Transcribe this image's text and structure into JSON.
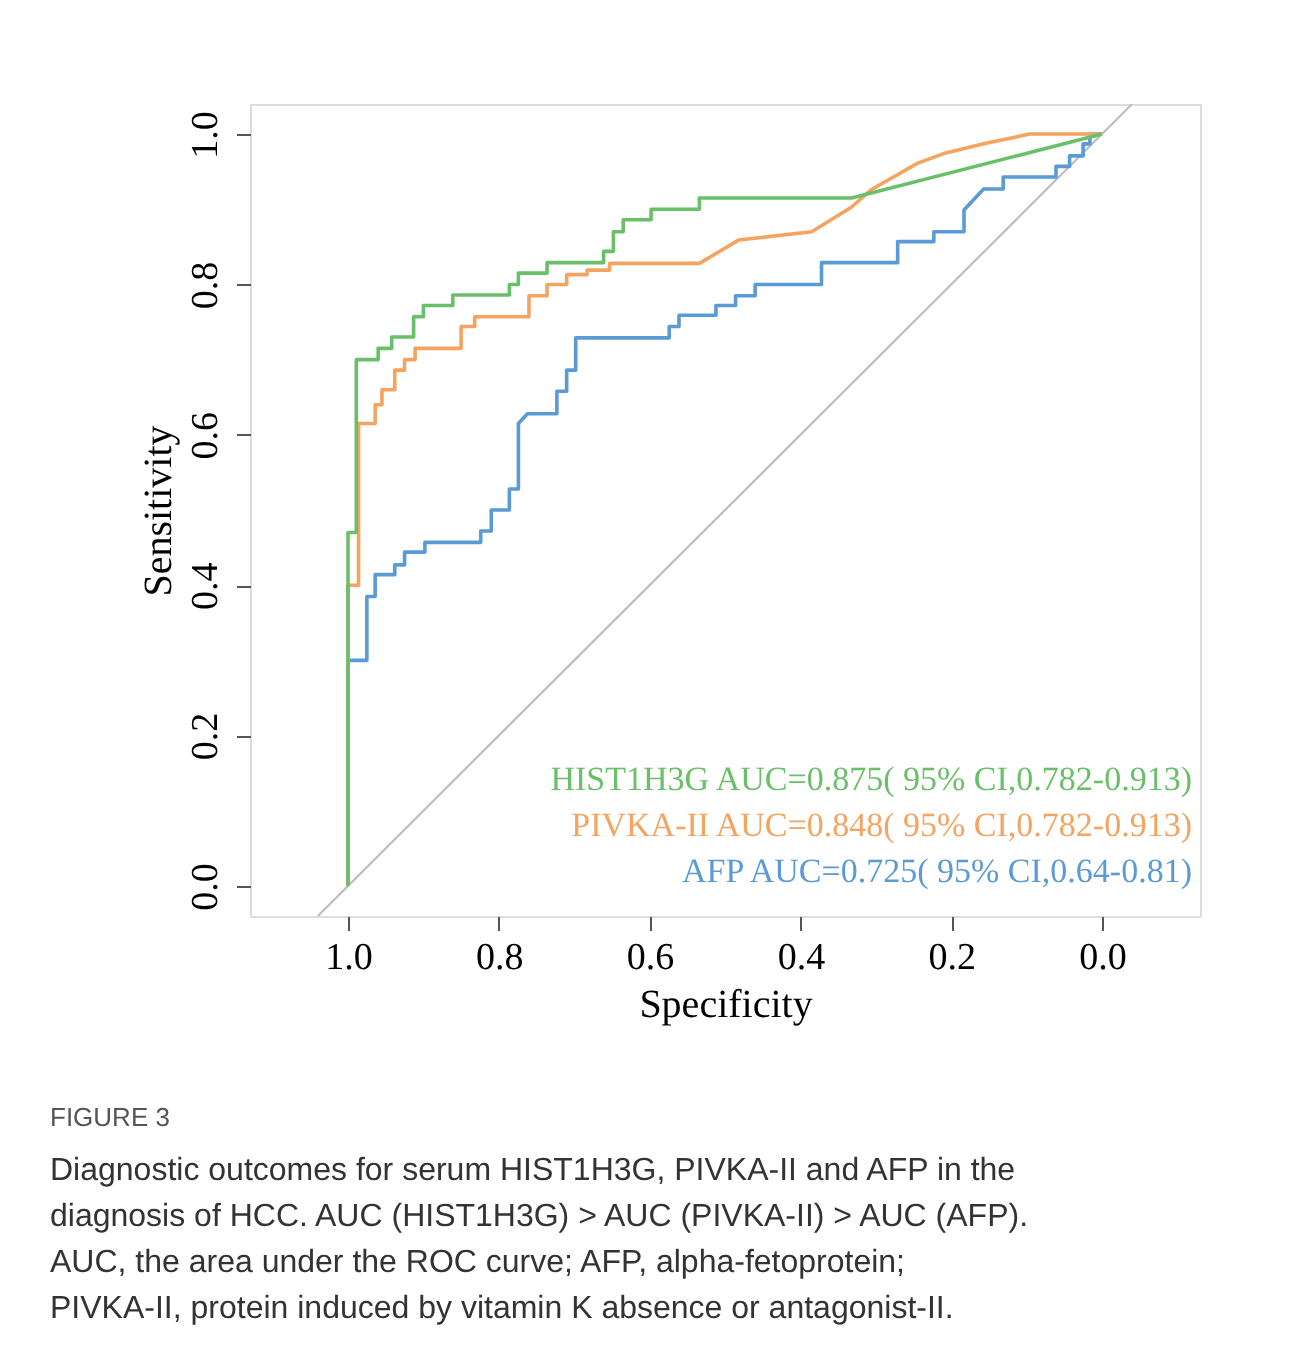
{
  "chart_data": {
    "type": "line",
    "xlabel": "Specificity",
    "ylabel": "Sensitivity",
    "xlim": [
      1.13,
      -0.13
    ],
    "ylim": [
      -0.04,
      1.04
    ],
    "xticks": [
      {
        "value": 1,
        "label": "1.0"
      },
      {
        "value": 0.8,
        "label": "0.8"
      },
      {
        "value": 0.6,
        "label": "0.6"
      },
      {
        "value": 0.4,
        "label": "0.4"
      },
      {
        "value": 0.2,
        "label": "0.2"
      },
      {
        "value": 0,
        "label": "0.0"
      }
    ],
    "yticks": [
      {
        "value": 0,
        "label": "0.0"
      },
      {
        "value": 0.2,
        "label": "0.2"
      },
      {
        "value": 0.4,
        "label": "0.4"
      },
      {
        "value": 0.6,
        "label": "0.6"
      },
      {
        "value": 0.8,
        "label": "0.8"
      },
      {
        "value": 1,
        "label": "1.0"
      }
    ],
    "grid": false,
    "legend": "bottom right",
    "marker": "none",
    "line_style": "solid",
    "series": [
      {
        "color": "#bebebe",
        "x": [
          1.04,
          -0.04
        ],
        "values": [
          -0.04,
          1.04
        ]
      },
      {
        "name": "AFP AUC=0.725( 95% CI,0.64-0.81)",
        "color": "#5b9bd5",
        "x": [
          1.0,
          1.0,
          0.975,
          0.975,
          0.964,
          0.964,
          0.938,
          0.938,
          0.925,
          0.925,
          0.898,
          0.898,
          0.824,
          0.824,
          0.81,
          0.81,
          0.786,
          0.786,
          0.774,
          0.774,
          0.762,
          0.723,
          0.723,
          0.71,
          0.71,
          0.698,
          0.698,
          0.574,
          0.574,
          0.561,
          0.561,
          0.512,
          0.512,
          0.486,
          0.486,
          0.46,
          0.46,
          0.372,
          0.372,
          0.271,
          0.271,
          0.223,
          0.223,
          0.183,
          0.183,
          0.157,
          0.157,
          0.131,
          0.131,
          0.061,
          0.061,
          0.043,
          0.043,
          0.025,
          0.025,
          0.016,
          0.016,
          0.0
        ],
        "values": [
          0.0,
          0.3,
          0.3,
          0.385,
          0.385,
          0.414,
          0.414,
          0.427,
          0.427,
          0.444,
          0.444,
          0.457,
          0.457,
          0.472,
          0.472,
          0.5,
          0.5,
          0.528,
          0.528,
          0.615,
          0.628,
          0.628,
          0.658,
          0.658,
          0.686,
          0.686,
          0.729,
          0.729,
          0.744,
          0.744,
          0.759,
          0.759,
          0.772,
          0.772,
          0.785,
          0.785,
          0.8,
          0.8,
          0.829,
          0.829,
          0.857,
          0.857,
          0.87,
          0.87,
          0.899,
          0.927,
          0.927,
          0.927,
          0.943,
          0.943,
          0.957,
          0.957,
          0.971,
          0.971,
          0.987,
          0.987,
          1.0,
          1.0
        ]
      },
      {
        "name": "PIVKA-II AUC=0.848( 95% CI,0.782-0.913)",
        "color": "#f4a460",
        "x": [
          1.0,
          1.0,
          0.986,
          0.986,
          0.964,
          0.964,
          0.955,
          0.955,
          0.938,
          0.938,
          0.925,
          0.925,
          0.911,
          0.911,
          0.85,
          0.85,
          0.832,
          0.832,
          0.76,
          0.76,
          0.736,
          0.736,
          0.71,
          0.71,
          0.683,
          0.683,
          0.653,
          0.653,
          0.534,
          0.482,
          0.385,
          0.332,
          0.306,
          0.245,
          0.21,
          0.157,
          0.096,
          0.0
        ],
        "values": [
          0.0,
          0.4,
          0.4,
          0.615,
          0.615,
          0.64,
          0.64,
          0.66,
          0.66,
          0.686,
          0.686,
          0.7,
          0.7,
          0.715,
          0.715,
          0.744,
          0.744,
          0.757,
          0.757,
          0.785,
          0.785,
          0.8,
          0.8,
          0.813,
          0.813,
          0.819,
          0.819,
          0.828,
          0.828,
          0.859,
          0.87,
          0.903,
          0.926,
          0.961,
          0.974,
          0.987,
          1.0,
          1.0
        ]
      },
      {
        "name": "HIST1H3G AUC=0.875( 95% CI,0.782-0.913)",
        "color": "#6abf69",
        "x": [
          1.0,
          1.0,
          0.989,
          0.989,
          0.96,
          0.96,
          0.942,
          0.942,
          0.913,
          0.913,
          0.9,
          0.9,
          0.861,
          0.861,
          0.786,
          0.786,
          0.774,
          0.774,
          0.736,
          0.736,
          0.661,
          0.661,
          0.648,
          0.648,
          0.635,
          0.635,
          0.598,
          0.598,
          0.534,
          0.534,
          0.332,
          0.0
        ],
        "values": [
          0.0,
          0.47,
          0.47,
          0.7,
          0.7,
          0.715,
          0.715,
          0.73,
          0.73,
          0.757,
          0.757,
          0.772,
          0.772,
          0.786,
          0.786,
          0.8,
          0.8,
          0.815,
          0.815,
          0.829,
          0.829,
          0.844,
          0.844,
          0.87,
          0.87,
          0.886,
          0.886,
          0.9,
          0.9,
          0.915,
          0.915,
          1.0
        ]
      }
    ],
    "annotations": [
      "FIGURE 3",
      "Diagnostic outcomes for serum HIST1H3G, PIVKA-II and AFP in the diagnosis of HCC. AUC (HIST1H3G) > AUC (PIVKA-II) > AUC (AFP). AUC, the area under the ROC curve; AFP, alpha-fetoprotein; PIVKA-II, protein induced by vitamin K absence or antagonist-II."
    ]
  }
}
